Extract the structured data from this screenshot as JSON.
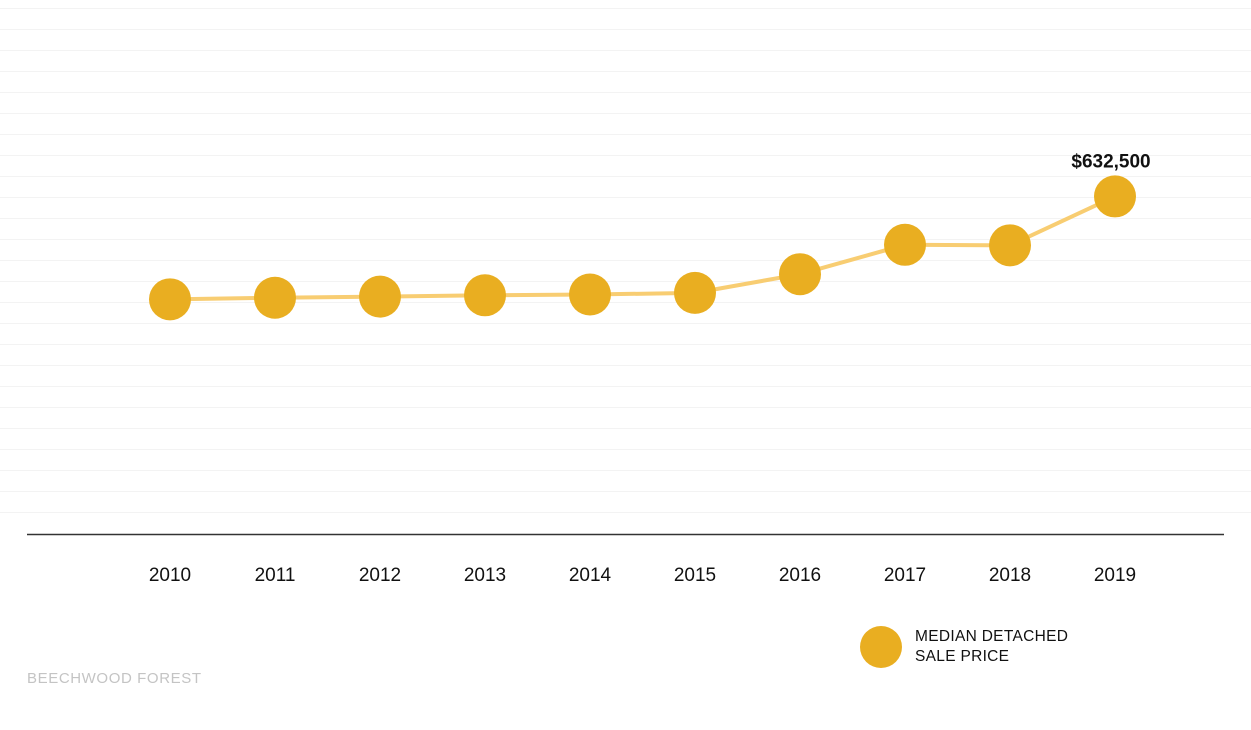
{
  "chart_data": {
    "type": "line",
    "categories": [
      "2010",
      "2011",
      "2012",
      "2013",
      "2014",
      "2015",
      "2016",
      "2017",
      "2018",
      "2019"
    ],
    "series": [
      {
        "name": "MEDIAN DETACHED SALE PRICE",
        "values": [
          440000,
          443000,
          445000,
          447500,
          449000,
          452000,
          487000,
          542000,
          541000,
          632500
        ]
      }
    ],
    "annotations": [
      {
        "category": "2019",
        "text": "$632,500"
      }
    ],
    "ylim": [
      0,
      1000000
    ],
    "grid": true,
    "legend_position": "bottom-right",
    "colors": {
      "marker": "#E9AE21",
      "line": "#F8CD72",
      "axis": "#333333",
      "grid": "#F3F3F3"
    }
  },
  "legend": {
    "lines": [
      "MEDIAN DETACHED",
      "SALE PRICE"
    ]
  },
  "source": "BEECHWOOD FOREST"
}
